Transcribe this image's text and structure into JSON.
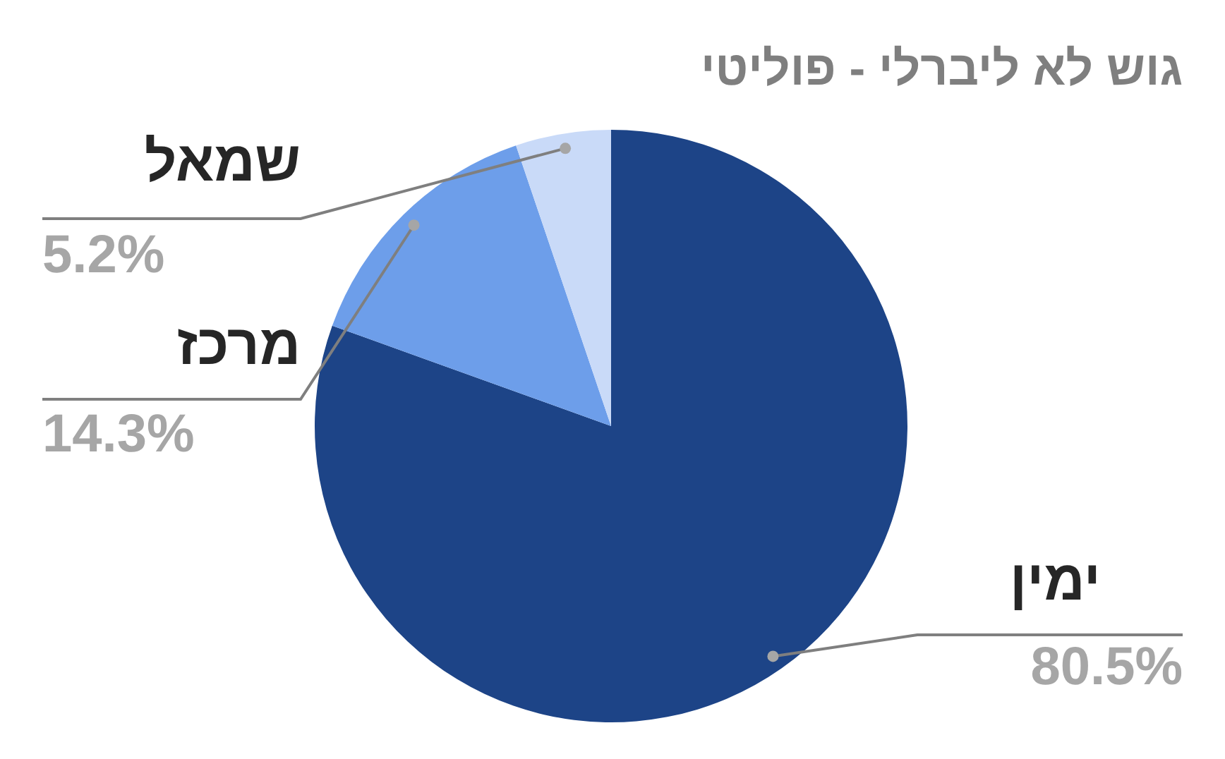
{
  "chart_data": {
    "type": "pie",
    "title": "גוש לא ליברלי - פוליטי",
    "categories": [
      "ימין",
      "מרכז",
      "שמאל"
    ],
    "values": [
      80.5,
      14.3,
      5.2
    ],
    "colors": [
      "#1d4487",
      "#6d9eea",
      "#c9daf8"
    ],
    "value_labels": [
      "80.5%",
      "14.3%",
      "5.2%"
    ],
    "legend": false
  }
}
